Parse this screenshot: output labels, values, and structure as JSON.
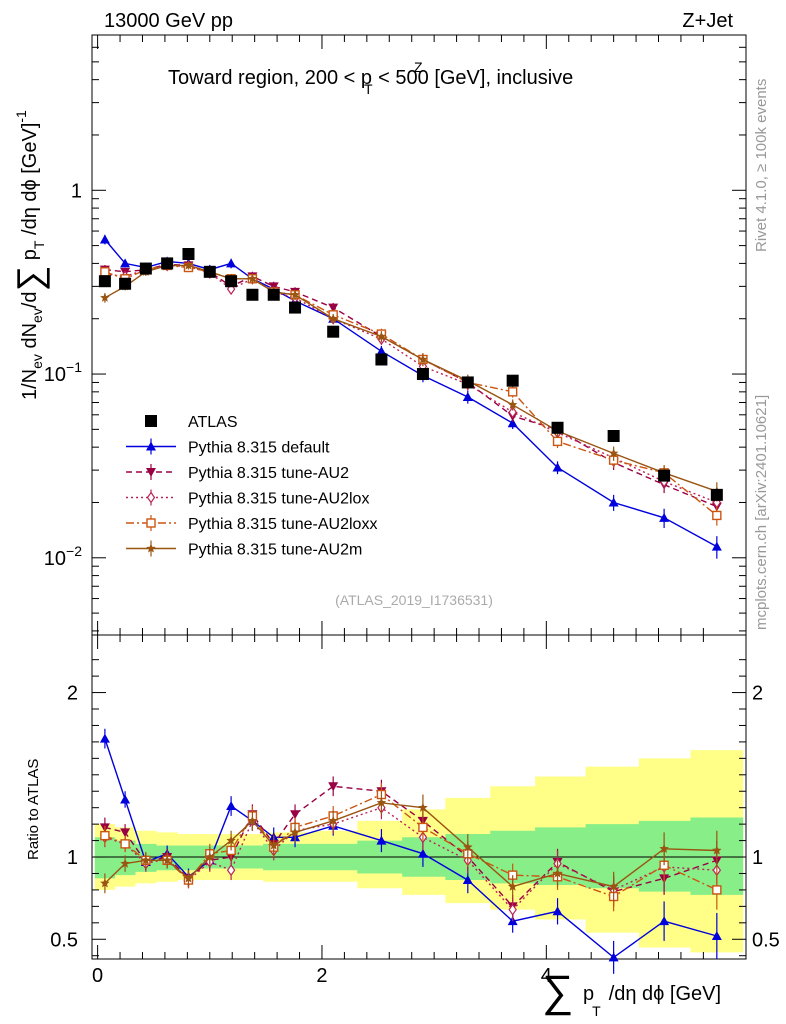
{
  "header": {
    "left": "13000 GeV pp",
    "right": "Z+Jet",
    "plot_title": "Toward region, 200 < p",
    "title_sup": "Z",
    "title_sub": "T",
    "title_tail": " < 500 [GeV], inclusive"
  },
  "side_text": {
    "rivet": "Rivet 4.1.0, ≥ 100k events",
    "mcplots": "mcplots.cern.ch [arXiv:2401.10621]"
  },
  "analysis_id": "(ATLAS_2019_I1736531)",
  "axes": {
    "ylabel_main": "1/N",
    "ylabel_ratio": "Ratio to ATLAS",
    "xlabel": "p",
    "xlabel_sub": "T",
    "xlabel_tail": "/dη dϕ [GeV]"
  },
  "chart_data": {
    "type": "line",
    "x": [
      0.065,
      0.245,
      0.43,
      0.62,
      0.81,
      1.0,
      1.19,
      1.38,
      1.57,
      1.76,
      2.1,
      2.53,
      2.9,
      3.3,
      3.7,
      4.1,
      4.6,
      5.05,
      5.52
    ],
    "xlim": [
      -0.05,
      5.78
    ],
    "main": {
      "yscale": "log",
      "ylim": [
        0.0038,
        7.0
      ],
      "yticks": [
        {
          "value": 0.01,
          "label": "10",
          "sup": "−2"
        },
        {
          "value": 0.1,
          "label": "10",
          "sup": "−1"
        },
        {
          "value": 1,
          "label": "1",
          "sup": ""
        }
      ]
    },
    "ratio": {
      "ylim": [
        0.38,
        2.35
      ],
      "yticks": [
        0.5,
        1,
        2
      ],
      "band_inner_lo": [
        0.87,
        0.89,
        0.91,
        0.92,
        0.92,
        0.93,
        0.93,
        0.93,
        0.92,
        0.92,
        0.92,
        0.9,
        0.88,
        0.86,
        0.84,
        0.83,
        0.81,
        0.79,
        0.77
      ],
      "band_inner_hi": [
        1.12,
        1.1,
        1.08,
        1.07,
        1.07,
        1.07,
        1.07,
        1.07,
        1.08,
        1.08,
        1.08,
        1.1,
        1.12,
        1.14,
        1.16,
        1.18,
        1.2,
        1.22,
        1.24
      ],
      "band_outer_lo": [
        0.8,
        0.82,
        0.84,
        0.85,
        0.86,
        0.86,
        0.86,
        0.86,
        0.85,
        0.85,
        0.85,
        0.81,
        0.77,
        0.72,
        0.68,
        0.62,
        0.54,
        0.45,
        0.42
      ],
      "band_outer_hi": [
        1.2,
        1.18,
        1.16,
        1.15,
        1.14,
        1.14,
        1.14,
        1.14,
        1.15,
        1.15,
        1.16,
        1.22,
        1.29,
        1.36,
        1.43,
        1.49,
        1.55,
        1.6,
        1.65
      ],
      "reference_line": 1
    },
    "series": [
      {
        "name": "ATLAS",
        "color": "#000000",
        "marker": "square",
        "dash": "",
        "line": false,
        "values": [
          0.32,
          0.31,
          0.375,
          0.4,
          0.45,
          0.36,
          0.32,
          0.27,
          0.27,
          0.23,
          0.17,
          0.12,
          0.1,
          0.09,
          0.092,
          0.051,
          0.046,
          0.028,
          0.022
        ],
        "ratio": [
          1,
          1,
          1,
          1,
          1,
          1,
          1,
          1,
          1,
          1,
          1,
          1,
          1,
          1,
          1,
          1,
          1,
          1,
          1
        ],
        "ratio_err": [
          0,
          0,
          0,
          0,
          0,
          0,
          0,
          0,
          0,
          0,
          0,
          0,
          0,
          0,
          0,
          0,
          0,
          0,
          0
        ]
      },
      {
        "name": "Pythia 8.315 default",
        "color": "#0000dd",
        "marker": "triangle-up",
        "dash": "",
        "line": true,
        "values": [
          0.54,
          0.4,
          0.38,
          0.41,
          0.4,
          0.37,
          0.4,
          0.33,
          0.29,
          0.25,
          0.2,
          0.133,
          0.098,
          0.075,
          0.054,
          0.031,
          0.02,
          0.0165,
          0.0115
        ],
        "ratio": [
          1.72,
          1.35,
          0.97,
          1.02,
          0.88,
          0.98,
          1.31,
          1.22,
          1.12,
          1.12,
          1.19,
          1.1,
          1.02,
          0.86,
          0.61,
          0.67,
          0.39,
          0.61,
          0.52
        ],
        "ratio_err": [
          0.06,
          0.05,
          0.05,
          0.05,
          0.05,
          0.06,
          0.06,
          0.06,
          0.06,
          0.06,
          0.06,
          0.07,
          0.08,
          0.08,
          0.07,
          0.08,
          0.1,
          0.12,
          0.14
        ]
      },
      {
        "name": "Pythia 8.315 tune-AU2",
        "color": "#990044",
        "marker": "triangle-down",
        "dash": "6,4",
        "line": true,
        "values": [
          0.37,
          0.36,
          0.37,
          0.395,
          0.39,
          0.36,
          0.3,
          0.34,
          0.3,
          0.28,
          0.23,
          0.16,
          0.12,
          0.09,
          0.059,
          0.05,
          0.033,
          0.025,
          0.019
        ],
        "ratio": [
          1.18,
          1.15,
          0.97,
          1.0,
          0.87,
          0.98,
          1.0,
          1.26,
          1.08,
          1.26,
          1.43,
          1.4,
          1.22,
          1.0,
          0.7,
          0.97,
          0.79,
          0.87,
          0.98
        ],
        "ratio_err": [
          0.06,
          0.05,
          0.05,
          0.05,
          0.05,
          0.06,
          0.06,
          0.06,
          0.06,
          0.06,
          0.06,
          0.07,
          0.08,
          0.08,
          0.07,
          0.08,
          0.09,
          0.1,
          0.12
        ]
      },
      {
        "name": "Pythia 8.315 tune-AU2lox",
        "color": "#bb2255",
        "marker": "diamond-open",
        "dash": "2,3",
        "line": true,
        "values": [
          0.35,
          0.34,
          0.37,
          0.39,
          0.385,
          0.355,
          0.29,
          0.33,
          0.28,
          0.26,
          0.2,
          0.155,
          0.11,
          0.088,
          0.062,
          0.048,
          0.035,
          0.026,
          0.02
        ],
        "ratio": [
          1.12,
          1.08,
          0.96,
          0.99,
          0.86,
          0.97,
          0.92,
          1.22,
          1.04,
          1.16,
          1.2,
          1.3,
          1.12,
          0.98,
          0.68,
          0.96,
          0.8,
          0.94,
          0.92
        ],
        "ratio_err": [
          0.06,
          0.05,
          0.05,
          0.05,
          0.05,
          0.06,
          0.06,
          0.06,
          0.06,
          0.06,
          0.06,
          0.07,
          0.08,
          0.08,
          0.07,
          0.08,
          0.09,
          0.1,
          0.12
        ]
      },
      {
        "name": "Pythia 8.315 tune-AU2loxx",
        "color": "#cc5511",
        "marker": "square-open",
        "dash": "8,3,2,3",
        "line": true,
        "values": [
          0.36,
          0.33,
          0.37,
          0.39,
          0.38,
          0.36,
          0.33,
          0.33,
          0.28,
          0.27,
          0.21,
          0.165,
          0.12,
          0.09,
          0.08,
          0.043,
          0.034,
          0.029,
          0.017
        ],
        "ratio": [
          1.13,
          1.08,
          0.98,
          0.98,
          0.86,
          1.02,
          1.04,
          1.25,
          1.06,
          1.18,
          1.25,
          1.38,
          1.18,
          1.02,
          0.89,
          0.88,
          0.76,
          0.95,
          0.8
        ],
        "ratio_err": [
          0.06,
          0.05,
          0.05,
          0.05,
          0.05,
          0.06,
          0.06,
          0.06,
          0.06,
          0.06,
          0.06,
          0.07,
          0.08,
          0.08,
          0.07,
          0.08,
          0.09,
          0.1,
          0.12
        ]
      },
      {
        "name": "Pythia 8.315 tune-AU2m",
        "color": "#995511",
        "marker": "star",
        "dash": "",
        "line": true,
        "values": [
          0.26,
          0.3,
          0.36,
          0.39,
          0.39,
          0.36,
          0.33,
          0.33,
          0.28,
          0.27,
          0.2,
          0.16,
          0.12,
          0.092,
          0.068,
          0.049,
          0.037,
          0.029,
          0.023
        ],
        "ratio": [
          0.84,
          0.96,
          0.98,
          0.98,
          0.87,
          1.0,
          1.1,
          1.22,
          1.07,
          1.15,
          1.22,
          1.33,
          1.3,
          1.06,
          0.82,
          0.9,
          0.82,
          1.05,
          1.04
        ],
        "ratio_err": [
          0.06,
          0.05,
          0.05,
          0.05,
          0.05,
          0.06,
          0.06,
          0.06,
          0.06,
          0.06,
          0.06,
          0.07,
          0.08,
          0.08,
          0.07,
          0.08,
          0.09,
          0.1,
          0.12
        ]
      }
    ]
  }
}
